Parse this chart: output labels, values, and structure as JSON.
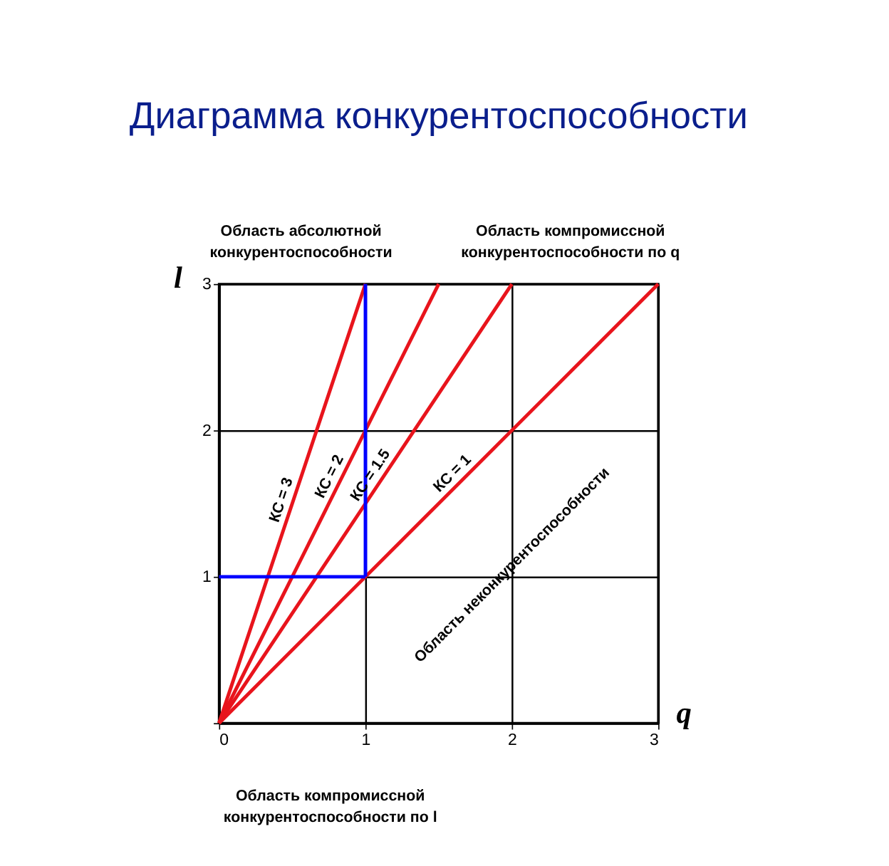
{
  "chart_data": {
    "type": "line",
    "title": "Диаграмма конкурентоспособности",
    "xlabel": "q",
    "ylabel": "l",
    "xlim": [
      0,
      3
    ],
    "ylim": [
      0,
      3
    ],
    "xticks": [
      0,
      1,
      2,
      3
    ],
    "yticks": [
      {
        "value": 0,
        "label": null
      },
      1,
      2,
      3
    ],
    "grid": true,
    "legend": false,
    "marker": "none",
    "line_style": "solid",
    "series": [
      {
        "name": "КС = 1",
        "color": "#e8141c",
        "x": [
          0,
          3
        ],
        "values": [
          0,
          3
        ]
      },
      {
        "name": "КС = 1.5",
        "color": "#e8141c",
        "x": [
          0,
          2
        ],
        "values": [
          0,
          3
        ]
      },
      {
        "name": "КС = 2",
        "color": "#e8141c",
        "x": [
          0,
          1.5
        ],
        "values": [
          0,
          3
        ]
      },
      {
        "name": "КС = 3",
        "color": "#e8141c",
        "x": [
          0,
          1
        ],
        "values": [
          0,
          3
        ]
      },
      {
        "color": "#0000ff",
        "x": [
          1,
          1
        ],
        "values": [
          1,
          3
        ]
      },
      {
        "color": "#0000ff",
        "x": [
          0,
          1
        ],
        "values": [
          1,
          1
        ]
      }
    ],
    "annotations": [
      "Область абсолютной\nконкурентоспособности",
      "Область компромиссной\nконкурентоспособности  по q",
      "Область компромиссной\nконкурентоспособности  по l",
      "Область неконкурентоспособности"
    ]
  }
}
